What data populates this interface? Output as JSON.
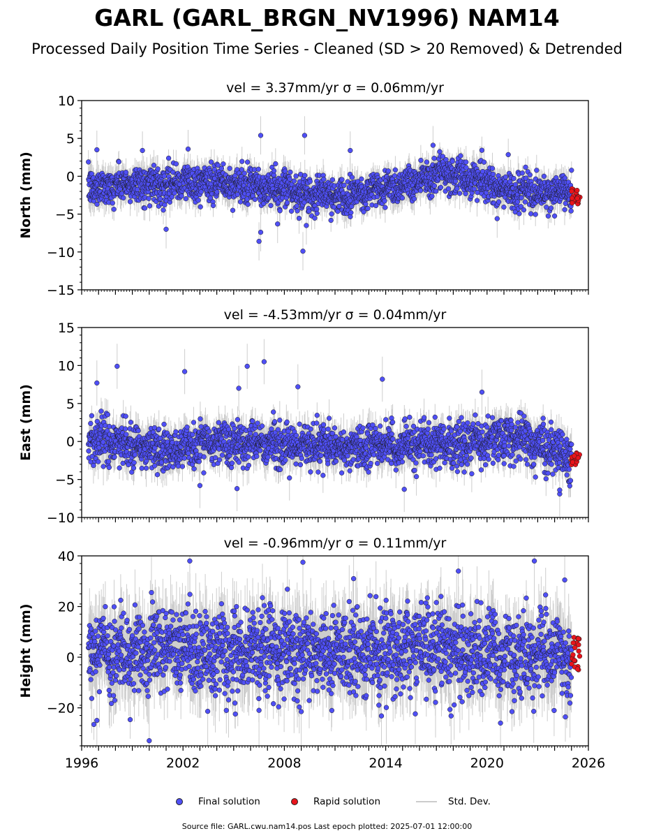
{
  "title": "GARL (GARL_BRGN_NV1996) NAM14",
  "subtitle": "Processed Daily Position Time Series - Cleaned (SD > 20 Removed) & Detrended",
  "footer": "Source file: GARL.cwu.nam14.pos  Last epoch plotted: 2025-07-01 12:00:00",
  "colors": {
    "final": "#4f4ff5",
    "rapid": "#e8141c",
    "std": "#b8b8b8",
    "edge": "#1a1a1a"
  },
  "legend": [
    {
      "label": "Final solution",
      "type": "dot",
      "color": "#4f4ff5"
    },
    {
      "label": "Rapid solution",
      "type": "dot",
      "color": "#e8141c"
    },
    {
      "label": "Std. Dev.",
      "type": "line",
      "color": "#cccccc"
    }
  ],
  "chart_data": [
    {
      "type": "scatter",
      "panel_title": "vel = 3.37mm/yr   σ = 0.06mm/yr",
      "ylabel": "North (mm)",
      "xlim": [
        1996,
        2026
      ],
      "ylim": [
        -15,
        10
      ],
      "yticks": [
        -15,
        -10,
        -5,
        0,
        5,
        10
      ],
      "xticks": [],
      "profile": {
        "x": [
          1996.4,
          1998,
          2000,
          2003,
          2006,
          2009,
          2011,
          2013,
          2015,
          2017,
          2019,
          2021,
          2023,
          2025.0,
          2025.5
        ],
        "y": [
          -1.5,
          -1.2,
          -1.0,
          -0.8,
          -1.3,
          -2.2,
          -2.6,
          -2.0,
          -1.0,
          0.2,
          -0.2,
          -1.8,
          -2.4,
          -2.0,
          -2.6
        ]
      },
      "scatter_sd": 1.15,
      "outliers": [
        [
          1996.9,
          3.5
        ],
        [
          1999.6,
          3.4
        ],
        [
          2002.3,
          3.6
        ],
        [
          2006.6,
          5.4
        ],
        [
          2006.5,
          -8.6
        ],
        [
          2006.6,
          -7.4
        ],
        [
          2009.2,
          5.4
        ],
        [
          2009.1,
          -9.9
        ],
        [
          2009.3,
          -6.5
        ],
        [
          2011.9,
          3.4
        ],
        [
          2016.8,
          4.1
        ],
        [
          2020.6,
          -5.6
        ],
        [
          2001.0,
          -7.0
        ],
        [
          2007.6,
          -6.3
        ]
      ],
      "rapid": {
        "x": [
          2025.0,
          2025.5
        ],
        "y": [
          -3.8,
          -1.6
        ]
      }
    },
    {
      "type": "scatter",
      "panel_title": "vel = -4.53mm/yr   σ = 0.04mm/yr",
      "ylabel": "East (mm)",
      "xlim": [
        1996,
        2026
      ],
      "ylim": [
        -10,
        15
      ],
      "yticks": [
        -10,
        -5,
        0,
        5,
        10,
        15
      ],
      "xticks": [],
      "profile": {
        "x": [
          1996.4,
          1997,
          1999,
          2001,
          2003,
          2006,
          2009,
          2012,
          2015,
          2018,
          2020,
          2022,
          2024,
          2025.5
        ],
        "y": [
          0.2,
          0.5,
          -0.5,
          -1.0,
          -0.3,
          -0.2,
          -0.6,
          -0.8,
          -0.5,
          -0.4,
          0.3,
          0.6,
          -1.3,
          -2.2
        ]
      },
      "scatter_sd": 1.35,
      "outliers": [
        [
          1996.9,
          7.7
        ],
        [
          1998.1,
          9.9
        ],
        [
          2002.1,
          9.2
        ],
        [
          2005.8,
          9.9
        ],
        [
          2006.8,
          10.5
        ],
        [
          2005.3,
          7.0
        ],
        [
          2013.8,
          8.2
        ],
        [
          2008.8,
          7.2
        ],
        [
          2015.1,
          -6.3
        ],
        [
          2024.3,
          -6.9
        ],
        [
          2024.3,
          -6.4
        ],
        [
          2005.2,
          -6.2
        ],
        [
          2008.3,
          -4.8
        ],
        [
          2003.0,
          -5.8
        ],
        [
          2019.7,
          6.5
        ]
      ],
      "rapid": {
        "x": [
          2025.0,
          2025.5
        ],
        "y": [
          -3.2,
          -1.5
        ]
      }
    },
    {
      "type": "scatter",
      "panel_title": "vel = -0.96mm/yr   σ = 0.11mm/yr",
      "ylabel": "Height (mm)",
      "xlim": [
        1996,
        2026
      ],
      "ylim": [
        -35,
        40
      ],
      "yticks": [
        -20,
        0,
        20,
        40
      ],
      "xticks": [
        1996,
        2002,
        2008,
        2014,
        2020,
        2026
      ],
      "profile": {
        "x": [
          1996.4,
          1999,
          2002,
          2005,
          2008,
          2011,
          2014,
          2017,
          2020,
          2023,
          2025.5
        ],
        "y": [
          2,
          3,
          2,
          1,
          3,
          2,
          3,
          4,
          1,
          2,
          0
        ]
      },
      "scatter_sd": 8.0,
      "outliers": [
        [
          2002.4,
          38
        ],
        [
          2009.1,
          37.5
        ],
        [
          2022.8,
          38
        ],
        [
          2000.0,
          -33
        ],
        [
          1996.9,
          -25
        ],
        [
          2006.5,
          -21
        ],
        [
          2009.0,
          -21.5
        ],
        [
          2018.3,
          34
        ],
        [
          2024.6,
          30.5
        ],
        [
          2012.1,
          31
        ]
      ],
      "rapid": {
        "x": [
          2025.0,
          2025.5
        ],
        "y": [
          -5,
          8
        ]
      }
    }
  ]
}
